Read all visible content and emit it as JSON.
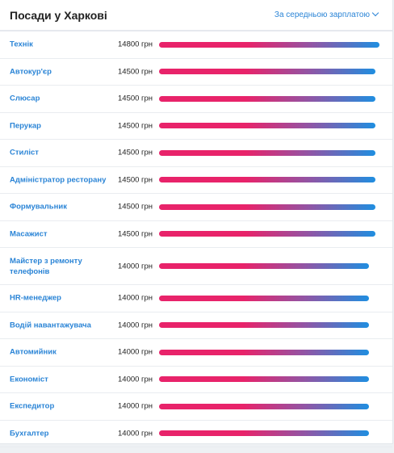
{
  "header": {
    "title": "Посади у Харкові",
    "sort_label": "За середньою зарплатою"
  },
  "rows": [
    {
      "name": "Технік",
      "salary": "14800 грн",
      "value": 14800
    },
    {
      "name": "Автокур'єр",
      "salary": "14500 грн",
      "value": 14500
    },
    {
      "name": "Слюсар",
      "salary": "14500 грн",
      "value": 14500
    },
    {
      "name": "Перукар",
      "salary": "14500 грн",
      "value": 14500
    },
    {
      "name": "Стиліст",
      "salary": "14500 грн",
      "value": 14500
    },
    {
      "name": "Адміністратор ресторану",
      "salary": "14500 грн",
      "value": 14500
    },
    {
      "name": "Формувальник",
      "salary": "14500 грн",
      "value": 14500
    },
    {
      "name": "Масажист",
      "salary": "14500 грн",
      "value": 14500
    },
    {
      "name": "Майстер з ремонту телефонів",
      "salary": "14000 грн",
      "value": 14000
    },
    {
      "name": "HR-менеджер",
      "salary": "14000 грн",
      "value": 14000
    },
    {
      "name": "Водій навантажувача",
      "salary": "14000 грн",
      "value": 14000
    },
    {
      "name": "Автомийник",
      "salary": "14000 грн",
      "value": 14000
    },
    {
      "name": "Економіст",
      "salary": "14000 грн",
      "value": 14000
    },
    {
      "name": "Експедитор",
      "salary": "14000 грн",
      "value": 14000
    },
    {
      "name": "Бухгалтер",
      "salary": "14000 грн",
      "value": 14000
    }
  ],
  "colors": {
    "accent": "#2a84d6",
    "bar_start": "#e8236a",
    "bar_end": "#1f8ee0"
  }
}
